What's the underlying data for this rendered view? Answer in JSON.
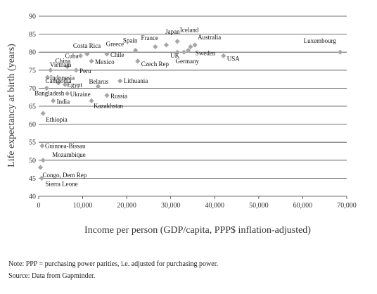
{
  "chart_data": {
    "type": "scatter",
    "title": "",
    "xlabel": "Income per person (GDP/capita, PPP$ inflation-adjusted)",
    "ylabel": "Life expectancy at birth (years)",
    "xlim": [
      0,
      70000
    ],
    "ylim": [
      40,
      90
    ],
    "xticks": [
      0,
      10000,
      20000,
      30000,
      40000,
      50000,
      60000,
      70000
    ],
    "xtick_labels": [
      "0",
      "10,000",
      "20,000",
      "30,000",
      "40,000",
      "50,000",
      "60,000",
      "70,000"
    ],
    "yticks": [
      40,
      45,
      50,
      55,
      60,
      65,
      70,
      75,
      80,
      85,
      90
    ],
    "ytick_labels": [
      "40",
      "45",
      "50",
      "55",
      "60",
      "65",
      "70",
      "75",
      "80",
      "85",
      "90"
    ],
    "grid": "horizontal",
    "marker": "diamond",
    "marker_color": "#a6a6a6",
    "points": [
      {
        "label": "Luxembourg",
        "x": 68500,
        "y": 80.0
      },
      {
        "label": "Iceland",
        "x": 34500,
        "y": 81.5
      },
      {
        "label": "Japan",
        "x": 31500,
        "y": 83.0
      },
      {
        "label": "Australia",
        "x": 35500,
        "y": 82.0
      },
      {
        "label": "Sweden",
        "x": 34000,
        "y": 80.5
      },
      {
        "label": "France",
        "x": 29000,
        "y": 82.0
      },
      {
        "label": "Spain",
        "x": 26500,
        "y": 81.5
      },
      {
        "label": "Greece",
        "x": 22000,
        "y": 80.5
      },
      {
        "label": "UK",
        "x": 31500,
        "y": 80.0
      },
      {
        "label": "Germany",
        "x": 33000,
        "y": 80.0
      },
      {
        "label": "USA",
        "x": 42000,
        "y": 79.0
      },
      {
        "label": "Czech Rep",
        "x": 22500,
        "y": 77.5
      },
      {
        "label": "Chile",
        "x": 15500,
        "y": 79.5
      },
      {
        "label": "Costa Rica",
        "x": 11000,
        "y": 79.5
      },
      {
        "label": "Cuba",
        "x": 9500,
        "y": 79.0
      },
      {
        "label": "Mexico",
        "x": 12000,
        "y": 77.5
      },
      {
        "label": "China",
        "x": 6500,
        "y": 76.0
      },
      {
        "label": "Peru",
        "x": 8500,
        "y": 75.0
      },
      {
        "label": "Vietnam",
        "x": 2700,
        "y": 75.0
      },
      {
        "label": "Cambodia",
        "x": 2000,
        "y": 73.0
      },
      {
        "label": "Indonesia",
        "x": 4500,
        "y": 71.5
      },
      {
        "label": "Egypt",
        "x": 6000,
        "y": 71.0
      },
      {
        "label": "Lithuania",
        "x": 18500,
        "y": 72.0
      },
      {
        "label": "Belarus",
        "x": 13500,
        "y": 70.5
      },
      {
        "label": "Ukraine",
        "x": 6500,
        "y": 68.5
      },
      {
        "label": "Russia",
        "x": 15500,
        "y": 68.0
      },
      {
        "label": "Kazakhstan",
        "x": 12000,
        "y": 66.5
      },
      {
        "label": "Bangladesh",
        "x": 1800,
        "y": 70.0
      },
      {
        "label": "India",
        "x": 3300,
        "y": 66.5
      },
      {
        "label": "Ethiopia",
        "x": 1000,
        "y": 63.0
      },
      {
        "label": "Guinnea-Bissau",
        "x": 800,
        "y": 54.0
      },
      {
        "label": "Mozambique",
        "x": 1000,
        "y": 50.0
      },
      {
        "label": "Congo, Dem Rep",
        "x": 400,
        "y": 48.0
      },
      {
        "label": "Sierra Leone",
        "x": 700,
        "y": 45.0
      }
    ]
  },
  "footer": {
    "note": "Note: PPP = purchasing power parities, i.e. adjusted for purchasing power.",
    "source": "Source: Data from Gapminder."
  }
}
